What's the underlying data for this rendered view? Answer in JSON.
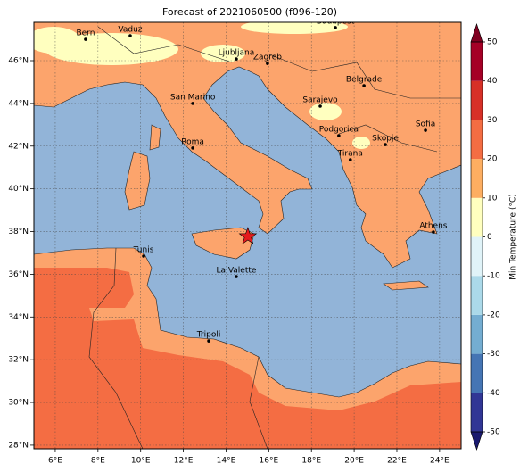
{
  "map": {
    "title": "Forecast of 2021060500 (f096-120)",
    "xticks": [
      {
        "value": 6,
        "label": "6°E"
      },
      {
        "value": 8,
        "label": "8°E"
      },
      {
        "value": 10,
        "label": "10°E"
      },
      {
        "value": 12,
        "label": "12°E"
      },
      {
        "value": 14,
        "label": "14°E"
      },
      {
        "value": 16,
        "label": "16°E"
      },
      {
        "value": 18,
        "label": "18°E"
      },
      {
        "value": 20,
        "label": "20°E"
      },
      {
        "value": 22,
        "label": "22°E"
      },
      {
        "value": 24,
        "label": "24°E"
      }
    ],
    "yticks": [
      {
        "value": 28,
        "label": "28°N"
      },
      {
        "value": 30,
        "label": "30°N"
      },
      {
        "value": 32,
        "label": "32°N"
      },
      {
        "value": 34,
        "label": "34°N"
      },
      {
        "value": 36,
        "label": "36°N"
      },
      {
        "value": 38,
        "label": "38°N"
      },
      {
        "value": 40,
        "label": "40°N"
      },
      {
        "value": 42,
        "label": "42°N"
      },
      {
        "value": 44,
        "label": "44°N"
      },
      {
        "value": 46,
        "label": "46°N"
      }
    ],
    "grid": true,
    "cities": [
      {
        "name": "Bern",
        "lon": 7.42,
        "lat": 47.0
      },
      {
        "name": "Vaduz",
        "lon": 9.51,
        "lat": 47.17
      },
      {
        "name": "Budapest",
        "lon": 19.12,
        "lat": 47.55
      },
      {
        "name": "Ljubljana",
        "lon": 14.48,
        "lat": 46.08
      },
      {
        "name": "Zagreb",
        "lon": 15.94,
        "lat": 45.87
      },
      {
        "name": "Belgrade",
        "lon": 20.46,
        "lat": 44.83
      },
      {
        "name": "San Marino",
        "lon": 12.44,
        "lat": 44.0
      },
      {
        "name": "Sarajevo",
        "lon": 18.41,
        "lat": 43.87
      },
      {
        "name": "Sofia",
        "lon": 23.34,
        "lat": 42.74
      },
      {
        "name": "Podgorica",
        "lon": 19.28,
        "lat": 42.49
      },
      {
        "name": "Skopje",
        "lon": 21.46,
        "lat": 42.07
      },
      {
        "name": "Roma",
        "lon": 12.44,
        "lat": 41.91
      },
      {
        "name": "Tirana",
        "lon": 19.82,
        "lat": 41.36
      },
      {
        "name": "Athens",
        "lon": 23.71,
        "lat": 37.98
      },
      {
        "name": "Tunis",
        "lon": 10.14,
        "lat": 36.85
      },
      {
        "name": "La Valette",
        "lon": 14.48,
        "lat": 35.89
      },
      {
        "name": "Tripoli",
        "lon": 13.19,
        "lat": 32.88
      }
    ],
    "marker": {
      "lon": 15.02,
      "lat": 37.77,
      "color": "#e41a1c"
    },
    "colorbar": {
      "label": "Min Temperature (°C)",
      "ticks": [
        -50,
        -40,
        -30,
        -20,
        -10,
        0,
        10,
        20,
        30,
        40,
        50
      ],
      "colors": [
        "#313695",
        "#4575b4",
        "#74add1",
        "#abd9e9",
        "#e0f3f8",
        "#ffffbf",
        "#fdae61",
        "#f46d43",
        "#d73027",
        "#a50026"
      ],
      "under_color": "#1a1a6e",
      "over_color": "#800020"
    }
  }
}
